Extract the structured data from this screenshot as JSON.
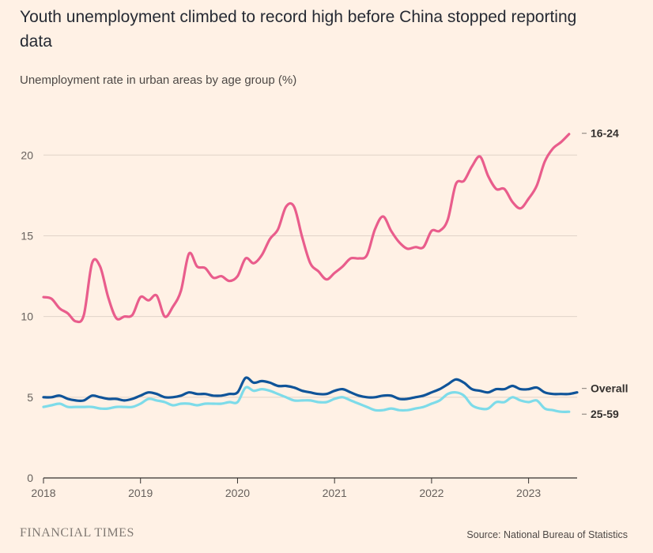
{
  "header": {
    "title": "Youth unemployment climbed to record high before China stopped reporting data",
    "subtitle": "Unemployment rate in urban areas by age group (%)"
  },
  "footer": {
    "publisher": "FINANCIAL TIMES",
    "source": "Source: National Bureau of Statistics"
  },
  "chart_data": {
    "type": "line",
    "title": "Youth unemployment climbed to record high before China stopped reporting data",
    "subtitle": "Unemployment rate in urban areas by age group (%)",
    "x_unit": "month",
    "x_start": "2018-01",
    "xlim": [
      "2018-01",
      "2023-07"
    ],
    "ylim": [
      0,
      23
    ],
    "x_ticks": [
      "2018",
      "2019",
      "2020",
      "2021",
      "2022",
      "2023"
    ],
    "y_ticks": [
      "0",
      "5",
      "10",
      "15",
      "20"
    ],
    "grid": "horizontal",
    "legend": "inline labels at line ends",
    "series": [
      {
        "name": "16-24",
        "color": "#e95d8c",
        "values": [
          11.2,
          11.1,
          10.5,
          10.2,
          9.7,
          10.1,
          13.3,
          13.1,
          11.2,
          9.9,
          10.0,
          10.1,
          11.2,
          11.0,
          11.3,
          10.0,
          10.6,
          11.6,
          13.9,
          13.1,
          13.0,
          12.4,
          12.5,
          12.2,
          12.5,
          13.6,
          13.3,
          13.8,
          14.8,
          15.4,
          16.8,
          16.8,
          14.9,
          13.3,
          12.8,
          12.3,
          12.7,
          13.1,
          13.6,
          13.6,
          13.8,
          15.4,
          16.2,
          15.3,
          14.6,
          14.2,
          14.3,
          14.3,
          15.3,
          15.3,
          16.0,
          18.2,
          18.4,
          19.3,
          19.9,
          18.7,
          17.9,
          17.9,
          17.1,
          16.7,
          17.3,
          18.1,
          19.6,
          20.4,
          20.8,
          21.3
        ],
        "end_label": "16-24"
      },
      {
        "name": "Overall",
        "color": "#0f5499",
        "values": [
          5.0,
          5.0,
          5.1,
          4.9,
          4.8,
          4.8,
          5.1,
          5.0,
          4.9,
          4.9,
          4.8,
          4.9,
          5.1,
          5.3,
          5.2,
          5.0,
          5.0,
          5.1,
          5.3,
          5.2,
          5.2,
          5.1,
          5.1,
          5.2,
          5.3,
          6.2,
          5.9,
          6.0,
          5.9,
          5.7,
          5.7,
          5.6,
          5.4,
          5.3,
          5.2,
          5.2,
          5.4,
          5.5,
          5.3,
          5.1,
          5.0,
          5.0,
          5.1,
          5.1,
          4.9,
          4.9,
          5.0,
          5.1,
          5.3,
          5.5,
          5.8,
          6.1,
          5.9,
          5.5,
          5.4,
          5.3,
          5.5,
          5.5,
          5.7,
          5.5,
          5.5,
          5.6,
          5.3,
          5.2,
          5.2,
          5.2,
          5.3
        ],
        "end_label": "Overall"
      },
      {
        "name": "25-59",
        "color": "#7ddbe9",
        "values": [
          4.4,
          4.5,
          4.6,
          4.4,
          4.4,
          4.4,
          4.4,
          4.3,
          4.3,
          4.4,
          4.4,
          4.4,
          4.6,
          4.9,
          4.8,
          4.7,
          4.5,
          4.6,
          4.6,
          4.5,
          4.6,
          4.6,
          4.6,
          4.7,
          4.7,
          5.6,
          5.4,
          5.5,
          5.4,
          5.2,
          5.0,
          4.8,
          4.8,
          4.8,
          4.7,
          4.7,
          4.9,
          5.0,
          4.8,
          4.6,
          4.4,
          4.2,
          4.2,
          4.3,
          4.2,
          4.2,
          4.3,
          4.4,
          4.6,
          4.8,
          5.2,
          5.3,
          5.1,
          4.5,
          4.3,
          4.3,
          4.7,
          4.7,
          5.0,
          4.8,
          4.7,
          4.8,
          4.3,
          4.2,
          4.1,
          4.1
        ],
        "end_label": "25-59"
      }
    ]
  }
}
